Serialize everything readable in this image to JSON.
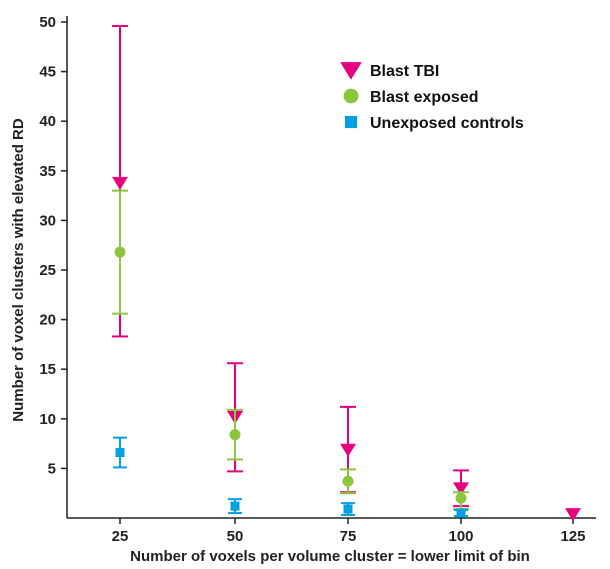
{
  "chart_data": {
    "type": "scatter",
    "xlabel": "Number of voxels per volume cluster = lower limit of bin",
    "ylabel": "Number of voxel clusters with elevated RD",
    "categories": [
      "25",
      "50",
      "75",
      "100",
      "125"
    ],
    "y_ticks": [
      "5",
      "10",
      "15",
      "20",
      "25",
      "30",
      "35",
      "40",
      "45",
      "50"
    ],
    "ylim": [
      0,
      50
    ],
    "grid": false,
    "legend_position": "top-right",
    "series": [
      {
        "name": "Blast TBI",
        "color": "#e6007e",
        "marker": "triangle-down",
        "values": [
          33.8,
          10.2,
          6.9,
          3.0,
          0.4
        ],
        "err_low": [
          18.3,
          4.7,
          2.6,
          1.2,
          null
        ],
        "err_high": [
          49.6,
          15.6,
          11.2,
          4.8,
          null
        ]
      },
      {
        "name": "Blast exposed",
        "color": "#8cc63f",
        "marker": "circle",
        "values": [
          26.8,
          8.4,
          3.7,
          2.0,
          null
        ],
        "err_low": [
          20.6,
          5.9,
          2.5,
          0.9,
          null
        ],
        "err_high": [
          33.0,
          10.9,
          4.9,
          2.6,
          null
        ]
      },
      {
        "name": "Unexposed controls",
        "color": "#00a0e3",
        "marker": "square",
        "values": [
          6.6,
          1.2,
          0.9,
          0.5,
          null
        ],
        "err_low": [
          5.1,
          0.5,
          0.3,
          0.2,
          null
        ],
        "err_high": [
          8.1,
          1.9,
          1.5,
          0.8,
          null
        ]
      }
    ]
  }
}
